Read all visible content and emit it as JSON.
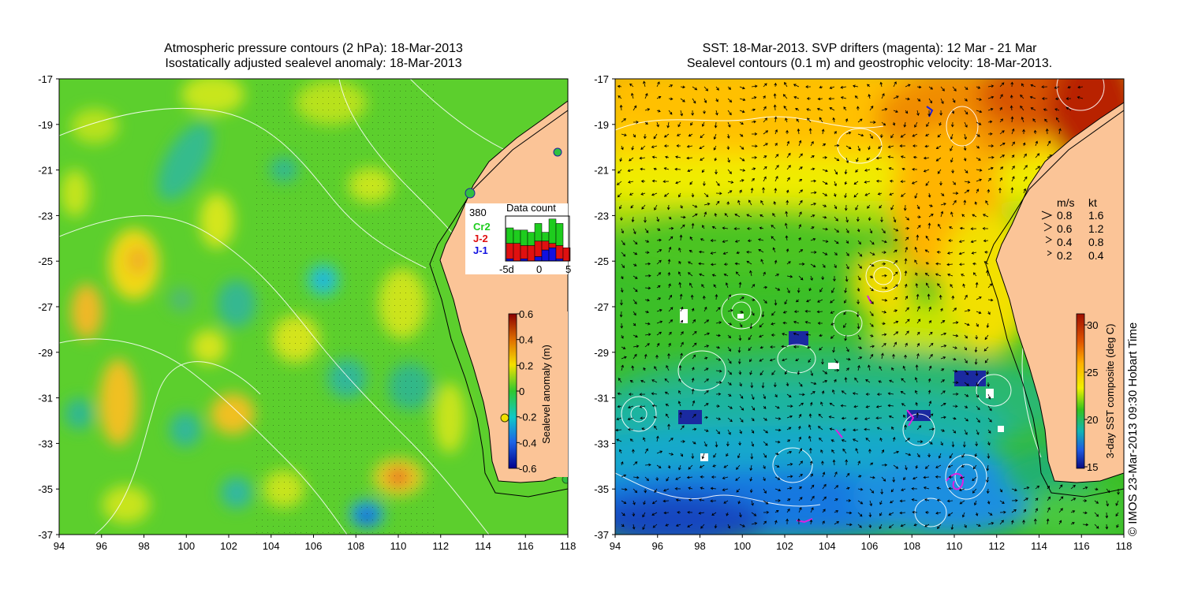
{
  "left_panel": {
    "title_line1": "Atmospheric pressure contours (2 hPa): 18-Mar-2013",
    "title_line2": "Isostatically adjusted sealevel anomaly: 18-Mar-2013",
    "lat_ticks": [
      "-17",
      "-19",
      "-21",
      "-23",
      "-25",
      "-27",
      "-29",
      "-31",
      "-33",
      "-35",
      "-37"
    ],
    "lon_ticks": [
      "94",
      "96",
      "98",
      "100",
      "102",
      "104",
      "106",
      "108",
      "110",
      "112",
      "114",
      "116",
      "118"
    ],
    "data_count": {
      "max_label": "380",
      "title": "Data count",
      "legend": [
        {
          "label": "Cr2",
          "color": "#1ecc1e"
        },
        {
          "label": "J-2",
          "color": "#e01010"
        },
        {
          "label": "J-1",
          "color": "#1010e0"
        }
      ],
      "x_ticks": [
        "-5d",
        "0",
        "5"
      ],
      "bars": [
        {
          "j1": 0.05,
          "j2": 0.35,
          "cr2": 0.35
        },
        {
          "j1": 0.0,
          "j2": 0.4,
          "cr2": 0.3
        },
        {
          "j1": 0.05,
          "j2": 0.3,
          "cr2": 0.35
        },
        {
          "j1": 0.0,
          "j2": 0.35,
          "cr2": 0.3
        },
        {
          "j1": 0.1,
          "j2": 0.35,
          "cr2": 0.4
        },
        {
          "j1": 0.25,
          "j2": 0.2,
          "cr2": 0.2
        },
        {
          "j1": 0.3,
          "j2": 0.1,
          "cr2": 0.55
        },
        {
          "j1": 0.05,
          "j2": 0.3,
          "cr2": 0.5
        },
        {
          "j1": 0.0,
          "j2": 0.3,
          "cr2": 0.0
        }
      ]
    },
    "colorbar": {
      "label": "Sealevel anomaly (m)",
      "ticks": [
        "0.6",
        "0.4",
        "0.2",
        "0",
        "-0.2",
        "-0.4",
        "-0.6"
      ]
    }
  },
  "right_panel": {
    "title_line1": "SST: 18-Mar-2013. SVP drifters (magenta): 12 Mar - 21 Mar",
    "title_line2": "Sealevel contours (0.1 m) and geostrophic velocity: 18-Mar-2013.",
    "lat_ticks": [
      "-17",
      "-19",
      "-21",
      "-23",
      "-25",
      "-27",
      "-29",
      "-31",
      "-33",
      "-35",
      "-37"
    ],
    "lon_ticks": [
      "94",
      "96",
      "98",
      "100",
      "102",
      "104",
      "106",
      "108",
      "110",
      "112",
      "114",
      "116",
      "118"
    ],
    "velocity_legend": {
      "header_ms": "m/s",
      "header_kt": "kt",
      "rows": [
        {
          "ms": "0.8",
          "kt": "1.6"
        },
        {
          "ms": "0.6",
          "kt": "1.2"
        },
        {
          "ms": "0.4",
          "kt": "0.8"
        },
        {
          "ms": "0.2",
          "kt": "0.4"
        }
      ]
    },
    "colorbar": {
      "label": "3-day SST composite (deg C)",
      "ticks": [
        "30",
        "25",
        "20",
        "15"
      ]
    }
  },
  "credit": "© IMOS 23-Mar-2013 09:30 Hobart Time"
}
